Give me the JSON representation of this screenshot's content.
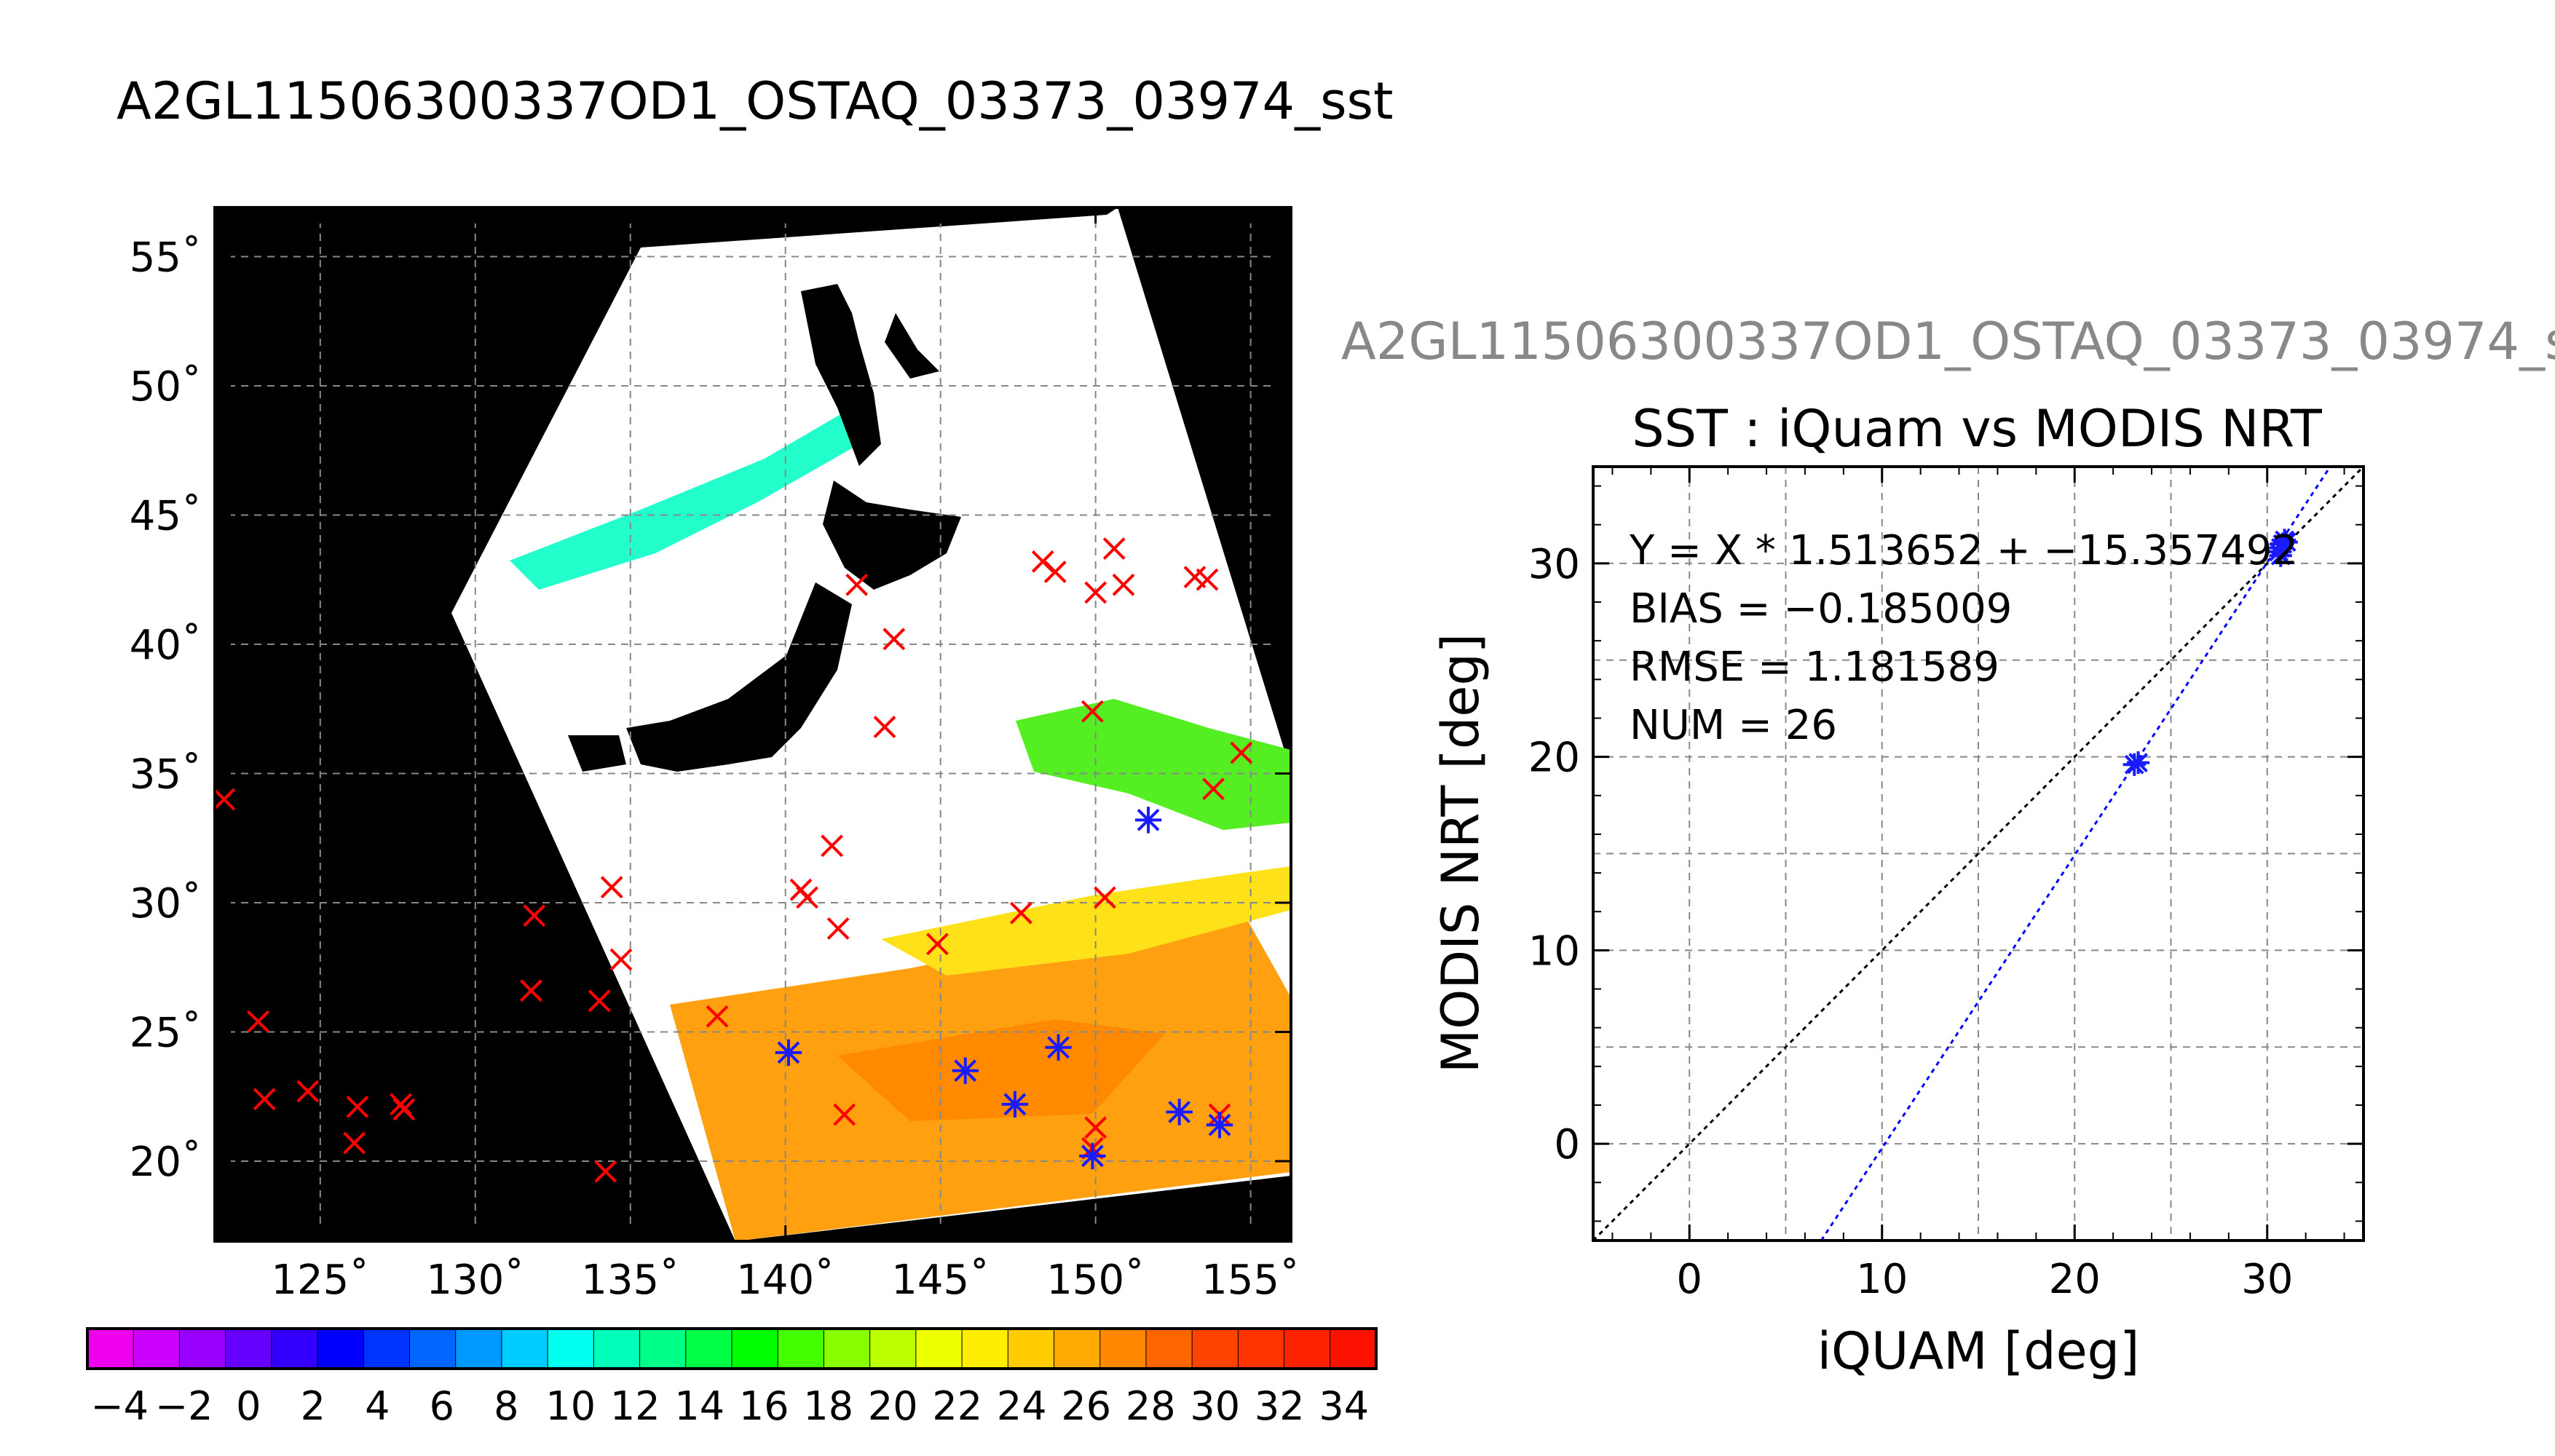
{
  "main_title": "A2GL11506300337OD1_OSTAQ_03373_03974_sst",
  "map": {
    "lon_ticks": [
      "125˚",
      "130˚",
      "135˚",
      "140˚",
      "145˚",
      "150˚",
      "155˚"
    ],
    "lat_ticks": [
      "55˚",
      "50˚",
      "45˚",
      "40˚",
      "35˚",
      "30˚",
      "25˚",
      "20˚"
    ],
    "lon_range": [
      121.6,
      156.3
    ],
    "lat_range": [
      16.9,
      56.9
    ],
    "colorbar": {
      "min": -5,
      "max": 35,
      "labels": [
        "−4",
        "−2",
        "0",
        "2",
        "4",
        "6",
        "8",
        "10",
        "12",
        "14",
        "16",
        "18",
        "20",
        "22",
        "24",
        "26",
        "28",
        "30",
        "32",
        "34"
      ],
      "colors": [
        "#ee00ee",
        "#cc00ff",
        "#9900ff",
        "#6600ff",
        "#3300ff",
        "#0000ff",
        "#0033ff",
        "#0066ff",
        "#0099ff",
        "#00ccff",
        "#00ffee",
        "#00ffbb",
        "#00ff88",
        "#00ff44",
        "#00ff00",
        "#44ff00",
        "#88ff00",
        "#bbff00",
        "#eeff00",
        "#ffee00",
        "#ffcc00",
        "#ffaa00",
        "#ff8800",
        "#ff6600",
        "#ff4400",
        "#ff3300",
        "#ff2200",
        "#ff1100"
      ]
    },
    "red_markers": [
      [
        121.9,
        34.0
      ],
      [
        123.0,
        25.4
      ],
      [
        123.2,
        22.4
      ],
      [
        124.6,
        22.7
      ],
      [
        126.1,
        20.7
      ],
      [
        126.2,
        22.1
      ],
      [
        127.6,
        22.2
      ],
      [
        127.7,
        22.0
      ],
      [
        131.8,
        26.6
      ],
      [
        131.9,
        29.5
      ],
      [
        134.0,
        26.2
      ],
      [
        134.2,
        19.6
      ],
      [
        134.4,
        30.6
      ],
      [
        134.7,
        27.8
      ],
      [
        137.8,
        25.6
      ],
      [
        140.5,
        30.5
      ],
      [
        140.7,
        30.2
      ],
      [
        141.5,
        32.2
      ],
      [
        141.7,
        29.0
      ],
      [
        141.9,
        21.8
      ],
      [
        142.3,
        42.3
      ],
      [
        143.2,
        36.8
      ],
      [
        143.5,
        40.2
      ],
      [
        144.9,
        28.4
      ],
      [
        147.6,
        29.6
      ],
      [
        148.3,
        43.2
      ],
      [
        148.7,
        42.8
      ],
      [
        149.9,
        37.4
      ],
      [
        149.9,
        20.5
      ],
      [
        150.0,
        21.3
      ],
      [
        150.0,
        42.0
      ],
      [
        150.3,
        30.2
      ],
      [
        150.6,
        43.7
      ],
      [
        150.9,
        42.3
      ],
      [
        153.2,
        42.6
      ],
      [
        153.6,
        42.5
      ],
      [
        153.8,
        34.4
      ],
      [
        154.0,
        21.8
      ],
      [
        154.7,
        35.8
      ]
    ],
    "blue_markers": [
      [
        140.1,
        24.2
      ],
      [
        145.8,
        23.5
      ],
      [
        147.4,
        22.2
      ],
      [
        148.8,
        24.4
      ],
      [
        149.9,
        20.2
      ],
      [
        151.7,
        33.2
      ],
      [
        152.7,
        21.9
      ],
      [
        154.0,
        21.4
      ]
    ]
  },
  "scatter": {
    "faded_title": "A2GL11506300337OD1_OSTAQ_03373_03974_s",
    "title": "SST : iQuam vs MODIS NRT",
    "fit_text": "Y = X * 1.513652 + −15.357492",
    "bias_text": "BIAS = −0.185009",
    "rmse_text": "RMSE = 1.181589",
    "num_text": "NUM = 26",
    "xlabel": "iQUAM [deg]",
    "ylabel": "MODIS NRT [deg]",
    "x_ticks": [
      "0",
      "10",
      "20",
      "30"
    ],
    "y_ticks": [
      "0",
      "10",
      "20",
      "30"
    ]
  },
  "chart_data": [
    {
      "type": "scatter",
      "title": "SST : iQuam vs MODIS NRT",
      "xlabel": "iQUAM [deg]",
      "ylabel": "MODIS NRT [deg]",
      "xlim": [
        -5,
        35
      ],
      "ylim": [
        -5,
        35
      ],
      "grid": true,
      "x_ticks": [
        0,
        10,
        20,
        30
      ],
      "y_ticks": [
        0,
        10,
        20,
        30
      ],
      "points": [
        [
          23.1,
          19.6
        ],
        [
          23.3,
          19.7
        ],
        [
          30.6,
          30.6
        ],
        [
          30.7,
          30.8
        ],
        [
          30.8,
          31.0
        ],
        [
          30.9,
          31.2
        ],
        [
          30.7,
          30.4
        ],
        [
          31.0,
          31.1
        ]
      ],
      "fit": {
        "slope": 1.513652,
        "intercept": -15.357492
      },
      "identity_line": true,
      "stats": {
        "bias": -0.185009,
        "rmse": 1.181589,
        "num": 26
      }
    },
    {
      "type": "heatmap",
      "title": "A2GL11506300337OD1_OSTAQ_03373_03974_sst",
      "x_ticks": [
        "125˚",
        "130˚",
        "135˚",
        "140˚",
        "145˚",
        "150˚",
        "155˚"
      ],
      "y_ticks": [
        "20˚",
        "25˚",
        "30˚",
        "35˚",
        "40˚",
        "45˚",
        "50˚",
        "55˚"
      ],
      "colorbar_range": [
        -5,
        35
      ],
      "colorbar_labels": [
        "−4",
        "−2",
        "0",
        "2",
        "4",
        "6",
        "8",
        "10",
        "12",
        "14",
        "16",
        "18",
        "20",
        "22",
        "24",
        "26",
        "28",
        "30",
        "32",
        "34"
      ]
    }
  ]
}
